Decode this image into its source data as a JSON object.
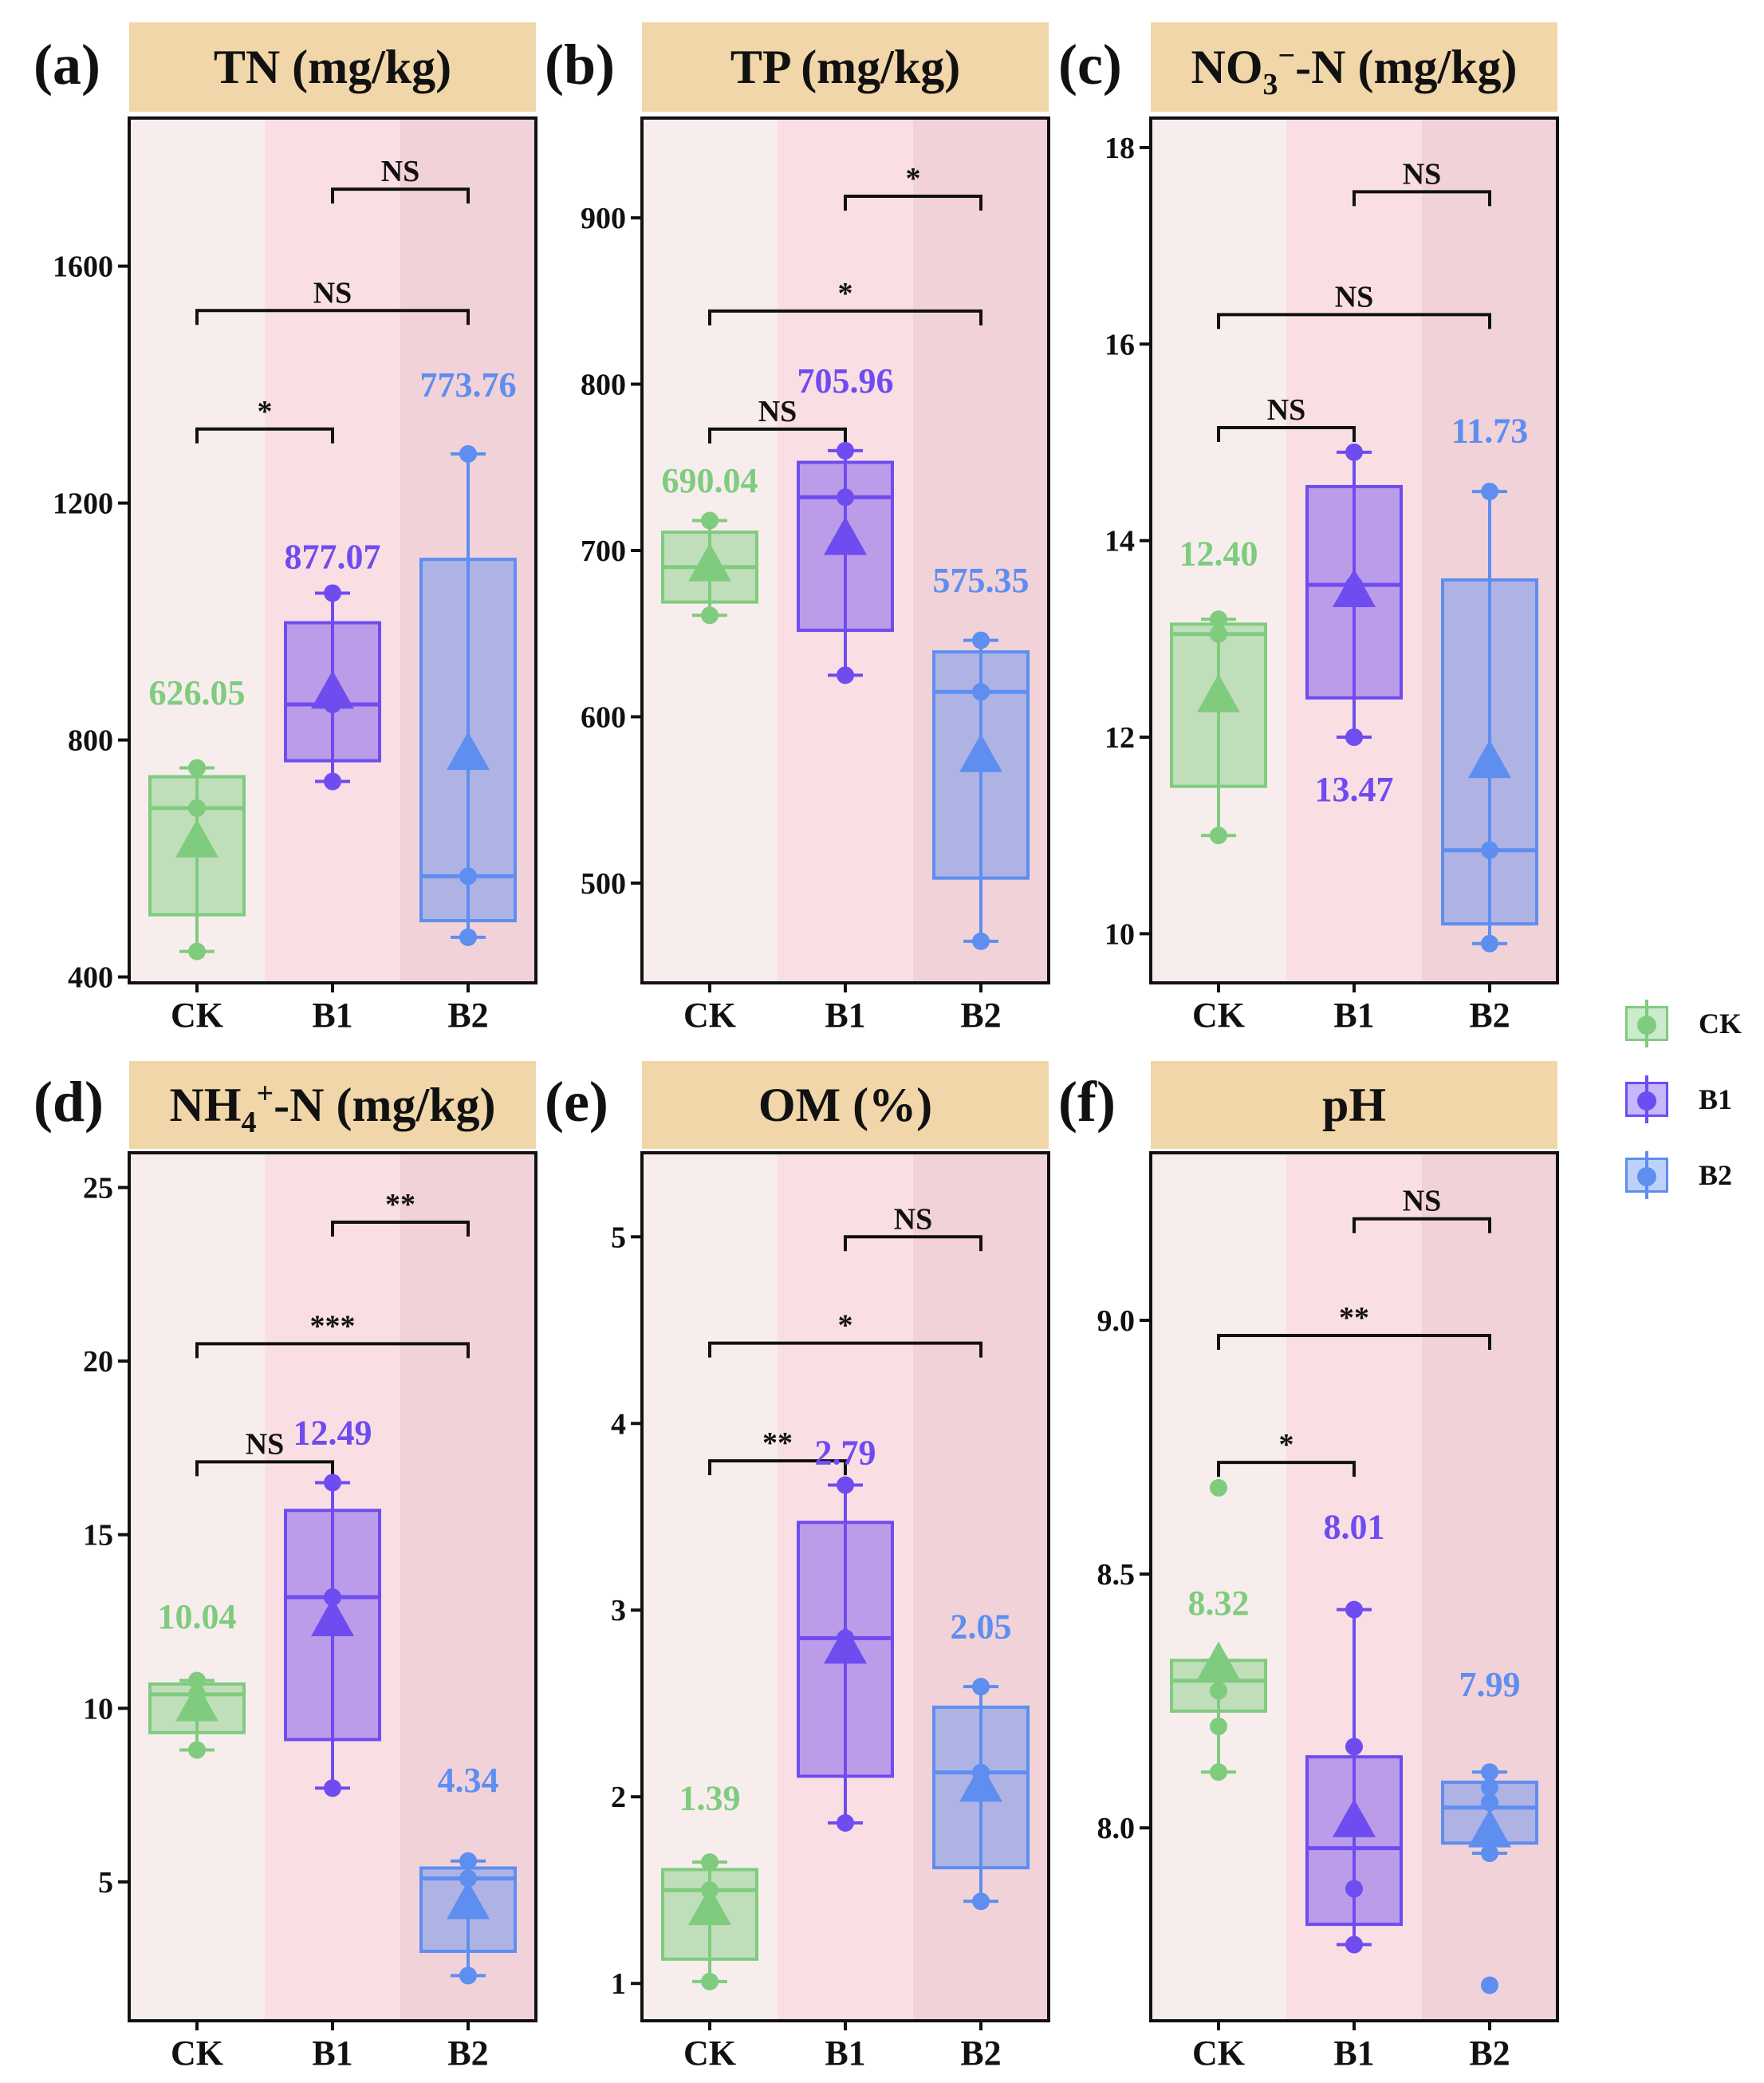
{
  "legend": [
    {
      "label": "CK",
      "color": "#7fcc7f"
    },
    {
      "label": "B1",
      "color": "#6f4cf0"
    },
    {
      "label": "B2",
      "color": "#5d8ef0"
    }
  ],
  "colors": {
    "CK": "#7fcc7f",
    "B1": "#6f4cf0",
    "B2": "#5d8ef0",
    "header_bg": "#f0d6a8",
    "bg_CK": "#f8eded",
    "bg_B1": "#f9dfe3",
    "bg_B2": "#f2d2d9"
  },
  "chart_data": [
    {
      "type": "box",
      "panel_label": "(a)",
      "title": "TN (mg/kg)",
      "categories": [
        "CK",
        "B1",
        "B2"
      ],
      "ylim": [
        390,
        1850
      ],
      "yticks": [
        400,
        800,
        1200,
        1600
      ],
      "ytick_labels": [
        "400",
        "800",
        "1200",
        "1600"
      ],
      "boxes": [
        {
          "group": "CK",
          "q1": 505,
          "median": 685,
          "q3": 738,
          "whisker_low": 443,
          "whisker_high": 753,
          "mean": 626.05,
          "mean_label": "626.05",
          "points": [
            443,
            685,
            753
          ]
        },
        {
          "group": "B1",
          "q1": 765,
          "median": 860,
          "q3": 998,
          "whisker_low": 730,
          "whisker_high": 1048,
          "mean": 877.07,
          "mean_label": "877.07",
          "points": [
            730,
            860,
            1048
          ]
        },
        {
          "group": "B2",
          "q1": 495,
          "median": 570,
          "q3": 1105,
          "whisker_low": 467,
          "whisker_high": 1283,
          "mean": 773.76,
          "mean_label": "773.76",
          "points": [
            467,
            570,
            1283
          ]
        }
      ],
      "brackets": [
        {
          "from": "B1",
          "to": "B2",
          "y": 1730,
          "label": "NS"
        },
        {
          "from": "CK",
          "to": "B2",
          "y": 1525,
          "label": "NS"
        },
        {
          "from": "CK",
          "to": "B1",
          "y": 1325,
          "label": "*"
        }
      ],
      "label_y": {
        "CK": 860,
        "B1": 1090,
        "B2": 1380
      }
    },
    {
      "type": "box",
      "panel_label": "(b)",
      "title": "TP (mg/kg)",
      "categories": [
        "CK",
        "B1",
        "B2"
      ],
      "ylim": [
        440,
        960
      ],
      "yticks": [
        500,
        600,
        700,
        800,
        900
      ],
      "ytick_labels": [
        "500",
        "600",
        "700",
        "800",
        "900"
      ],
      "boxes": [
        {
          "group": "CK",
          "q1": 669,
          "median": 690,
          "q3": 711,
          "whisker_low": 661,
          "whisker_high": 718,
          "mean": 690.04,
          "mean_label": "690.04",
          "points": [
            661,
            690,
            718
          ]
        },
        {
          "group": "B1",
          "q1": 652,
          "median": 732,
          "q3": 753,
          "whisker_low": 625,
          "whisker_high": 760,
          "mean": 705.96,
          "mean_label": "705.96",
          "points": [
            625,
            732,
            760
          ]
        },
        {
          "group": "B2",
          "q1": 503,
          "median": 615,
          "q3": 639,
          "whisker_low": 465,
          "whisker_high": 646,
          "mean": 575.35,
          "mean_label": "575.35",
          "points": [
            465,
            615,
            646
          ]
        }
      ],
      "brackets": [
        {
          "from": "B1",
          "to": "B2",
          "y": 913,
          "label": "*"
        },
        {
          "from": "CK",
          "to": "B2",
          "y": 844,
          "label": "*"
        },
        {
          "from": "CK",
          "to": "B1",
          "y": 773,
          "label": "NS"
        }
      ],
      "label_y": {
        "CK": 735,
        "B1": 795,
        "B2": 675
      }
    },
    {
      "type": "box",
      "panel_label": "(c)",
      "title": "NO3⁻-N (mg/kg)",
      "title_parts": {
        "pre": "NO",
        "sub": "3",
        "sup": "−",
        "post": "-N (mg/kg)"
      },
      "categories": [
        "CK",
        "B1",
        "B2"
      ],
      "ylim": [
        9.5,
        18.3
      ],
      "yticks": [
        10,
        12,
        14,
        16,
        18
      ],
      "ytick_labels": [
        "10",
        "12",
        "14",
        "16",
        "18"
      ],
      "boxes": [
        {
          "group": "CK",
          "q1": 11.5,
          "median": 13.05,
          "q3": 13.15,
          "whisker_low": 11.0,
          "whisker_high": 13.2,
          "mean": 12.4,
          "mean_label": "12.40",
          "points": [
            11.0,
            13.05,
            13.2
          ]
        },
        {
          "group": "B1",
          "q1": 12.4,
          "median": 13.55,
          "q3": 14.55,
          "whisker_low": 12.0,
          "whisker_high": 14.9,
          "mean": 13.47,
          "mean_label": "13.47",
          "points": [
            12.0,
            13.55,
            14.9
          ]
        },
        {
          "group": "B2",
          "q1": 10.1,
          "median": 10.85,
          "q3": 13.6,
          "whisker_low": 9.9,
          "whisker_high": 14.5,
          "mean": 11.73,
          "mean_label": "11.73",
          "points": [
            9.9,
            10.85,
            14.5
          ]
        }
      ],
      "brackets": [
        {
          "from": "B1",
          "to": "B2",
          "y": 17.55,
          "label": "NS"
        },
        {
          "from": "CK",
          "to": "B2",
          "y": 16.3,
          "label": "NS"
        },
        {
          "from": "CK",
          "to": "B1",
          "y": 15.15,
          "label": "NS"
        }
      ],
      "label_y": {
        "CK": 13.75,
        "B1": 11.35,
        "B2": 15.0
      }
    },
    {
      "type": "box",
      "panel_label": "(d)",
      "title": "NH4⁺-N (mg/kg)",
      "title_parts": {
        "pre": "NH",
        "sub": "4",
        "sup": "+",
        "post": "-N (mg/kg)"
      },
      "categories": [
        "CK",
        "B1",
        "B2"
      ],
      "ylim": [
        1.0,
        26.0
      ],
      "yticks": [
        5,
        10,
        15,
        20,
        25
      ],
      "ytick_labels": [
        "5",
        "10",
        "15",
        "20",
        "25"
      ],
      "boxes": [
        {
          "group": "CK",
          "q1": 9.3,
          "median": 10.4,
          "q3": 10.7,
          "whisker_low": 8.8,
          "whisker_high": 10.8,
          "mean": 10.04,
          "mean_label": "10.04",
          "points": [
            8.8,
            10.4,
            10.8
          ]
        },
        {
          "group": "B1",
          "q1": 9.1,
          "median": 13.2,
          "q3": 15.7,
          "whisker_low": 7.7,
          "whisker_high": 16.5,
          "mean": 12.49,
          "mean_label": "12.49",
          "points": [
            7.7,
            13.2,
            16.5
          ]
        },
        {
          "group": "B2",
          "q1": 3.0,
          "median": 5.1,
          "q3": 5.4,
          "whisker_low": 2.3,
          "whisker_high": 5.6,
          "mean": 4.34,
          "mean_label": "4.34",
          "points": [
            2.3,
            5.1,
            5.6
          ]
        }
      ],
      "brackets": [
        {
          "from": "B1",
          "to": "B2",
          "y": 24.0,
          "label": "**"
        },
        {
          "from": "CK",
          "to": "B2",
          "y": 20.5,
          "label": "***"
        },
        {
          "from": "CK",
          "to": "B1",
          "y": 17.1,
          "label": "NS"
        }
      ],
      "label_y": {
        "CK": 12.3,
        "B1": 17.6,
        "B2": 7.6
      }
    },
    {
      "type": "box",
      "panel_label": "(e)",
      "title": "OM (%)",
      "categories": [
        "CK",
        "B1",
        "B2"
      ],
      "ylim": [
        0.8,
        5.45
      ],
      "yticks": [
        1,
        2,
        3,
        4,
        5
      ],
      "ytick_labels": [
        "1",
        "2",
        "3",
        "4",
        "5"
      ],
      "boxes": [
        {
          "group": "CK",
          "q1": 1.13,
          "median": 1.5,
          "q3": 1.61,
          "whisker_low": 1.01,
          "whisker_high": 1.65,
          "mean": 1.39,
          "mean_label": "1.39",
          "points": [
            1.01,
            1.5,
            1.65
          ]
        },
        {
          "group": "B1",
          "q1": 2.11,
          "median": 2.85,
          "q3": 3.47,
          "whisker_low": 1.86,
          "whisker_high": 3.67,
          "mean": 2.79,
          "mean_label": "2.79",
          "points": [
            1.86,
            2.85,
            3.67
          ]
        },
        {
          "group": "B2",
          "q1": 1.62,
          "median": 2.13,
          "q3": 2.48,
          "whisker_low": 1.44,
          "whisker_high": 2.59,
          "mean": 2.05,
          "mean_label": "2.05",
          "points": [
            1.44,
            2.13,
            2.59
          ]
        }
      ],
      "brackets": [
        {
          "from": "B1",
          "to": "B2",
          "y": 5.0,
          "label": "NS"
        },
        {
          "from": "CK",
          "to": "B2",
          "y": 4.43,
          "label": "*"
        },
        {
          "from": "CK",
          "to": "B1",
          "y": 3.8,
          "label": "**"
        }
      ],
      "label_y": {
        "CK": 1.93,
        "B1": 3.78,
        "B2": 2.85
      }
    },
    {
      "type": "box",
      "panel_label": "(f)",
      "title": "pH",
      "categories": [
        "CK",
        "B1",
        "B2"
      ],
      "ylim": [
        7.62,
        9.33
      ],
      "yticks": [
        8.0,
        8.5,
        9.0
      ],
      "ytick_labels": [
        "8.0",
        "8.5",
        "9.0"
      ],
      "boxes": [
        {
          "group": "CK",
          "q1": 8.23,
          "median": 8.29,
          "q3": 8.33,
          "whisker_low": 8.11,
          "whisker_high": 8.33,
          "mean": 8.32,
          "mean_label": "8.32",
          "points": [
            8.11,
            8.2,
            8.27,
            8.31,
            8.33,
            8.67
          ]
        },
        {
          "group": "B1",
          "q1": 7.81,
          "median": 7.96,
          "q3": 8.14,
          "whisker_low": 7.77,
          "whisker_high": 8.43,
          "mean": 8.01,
          "mean_label": "8.01",
          "points": [
            7.77,
            7.88,
            8.02,
            8.16,
            8.43
          ]
        },
        {
          "group": "B2",
          "q1": 7.97,
          "median": 8.04,
          "q3": 8.09,
          "whisker_low": 7.95,
          "whisker_high": 8.11,
          "mean": 7.99,
          "mean_label": "7.99",
          "points": [
            7.69,
            7.95,
            8.05,
            8.08,
            8.11
          ]
        }
      ],
      "brackets": [
        {
          "from": "B1",
          "to": "B2",
          "y": 9.2,
          "label": "NS"
        },
        {
          "from": "CK",
          "to": "B2",
          "y": 8.97,
          "label": "**"
        },
        {
          "from": "CK",
          "to": "B1",
          "y": 8.72,
          "label": "*"
        }
      ],
      "label_y": {
        "CK": 8.42,
        "B1": 8.57,
        "B2": 8.26
      }
    }
  ]
}
